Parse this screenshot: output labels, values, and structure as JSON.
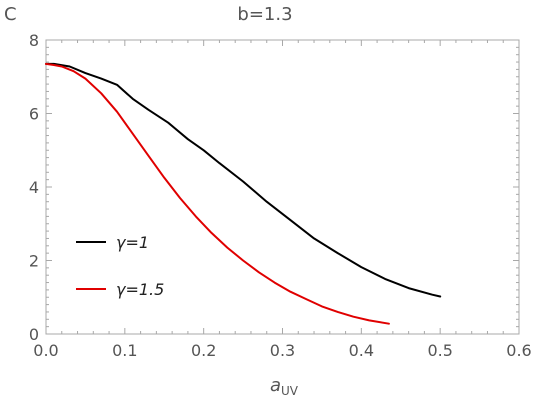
{
  "chart_data": {
    "type": "line",
    "panel_label": "C",
    "title": "b=1.3",
    "xlabel_main": "a",
    "xlabel_sub": "UV",
    "ylabel": "",
    "xlim": [
      0.0,
      0.6
    ],
    "ylim": [
      0,
      8
    ],
    "x_ticks": [
      "0.0",
      "0.1",
      "0.2",
      "0.3",
      "0.4",
      "0.5",
      "0.6"
    ],
    "y_ticks": [
      "0",
      "2",
      "4",
      "6",
      "8"
    ],
    "legend_position": "middle-left",
    "grid": false,
    "series": [
      {
        "name": "γ=1",
        "color": "#000000",
        "x": [
          0.0,
          0.01,
          0.03,
          0.05,
          0.07,
          0.09,
          0.11,
          0.13,
          0.155,
          0.18,
          0.2,
          0.22,
          0.25,
          0.28,
          0.31,
          0.34,
          0.37,
          0.4,
          0.43,
          0.46,
          0.49,
          0.5
        ],
        "y": [
          7.35,
          7.35,
          7.28,
          7.1,
          6.95,
          6.78,
          6.4,
          6.1,
          5.75,
          5.3,
          5.0,
          4.65,
          4.15,
          3.6,
          3.1,
          2.6,
          2.2,
          1.82,
          1.5,
          1.25,
          1.07,
          1.02
        ]
      },
      {
        "name": "γ=1.5",
        "color": "#e00000",
        "x": [
          0.0,
          0.01,
          0.02,
          0.035,
          0.05,
          0.07,
          0.09,
          0.11,
          0.13,
          0.15,
          0.17,
          0.19,
          0.21,
          0.23,
          0.25,
          0.27,
          0.29,
          0.31,
          0.33,
          0.35,
          0.37,
          0.39,
          0.41,
          0.435
        ],
        "y": [
          7.35,
          7.32,
          7.28,
          7.15,
          6.95,
          6.55,
          6.05,
          5.45,
          4.85,
          4.25,
          3.7,
          3.2,
          2.75,
          2.35,
          2.0,
          1.68,
          1.4,
          1.15,
          0.95,
          0.75,
          0.6,
          0.47,
          0.37,
          0.28
        ]
      }
    ]
  }
}
